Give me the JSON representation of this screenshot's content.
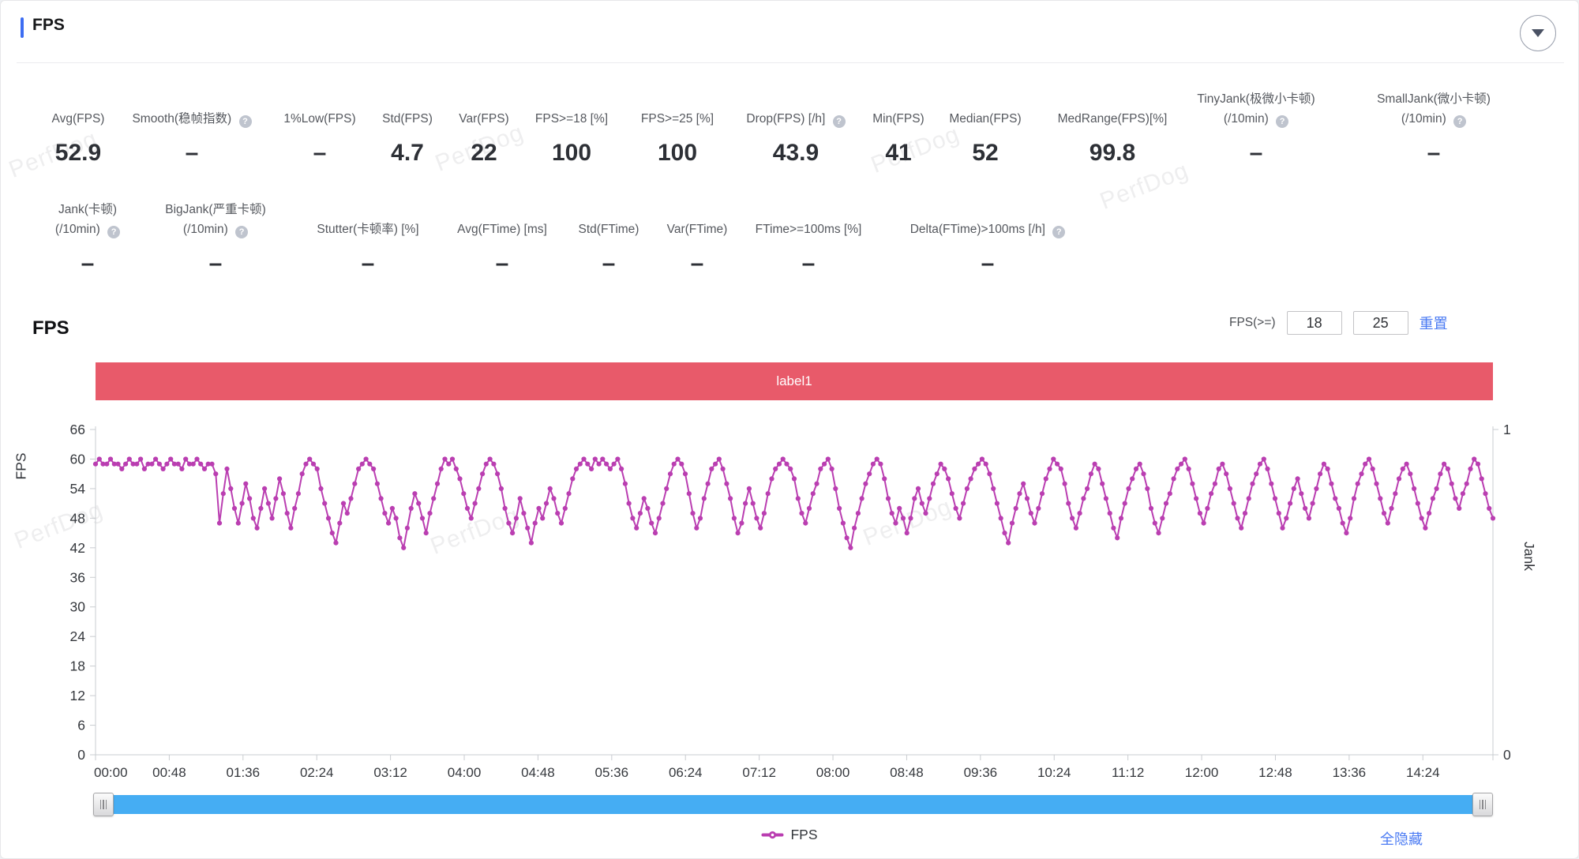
{
  "panel": {
    "title": "FPS"
  },
  "watermark": "PerfDog",
  "colors": {
    "accent_blue": "#3d6df2",
    "link_blue": "#4b7bf3",
    "banner_red": "#e85a6a",
    "series_magenta": "#ba3eb1",
    "scrollbar_blue": "#45adf3",
    "axis_line": "#c9ccd0",
    "axis_text": "#35383d"
  },
  "stats_row1": [
    {
      "line1": "Avg(FPS)",
      "line2": "",
      "help": false,
      "value": "52.9"
    },
    {
      "line1": "Smooth(稳帧指数)",
      "line2": "",
      "help": true,
      "value": "–"
    },
    {
      "line1": "1%Low(FPS)",
      "line2": "",
      "help": false,
      "value": "–"
    },
    {
      "line1": "Std(FPS)",
      "line2": "",
      "help": false,
      "value": "4.7"
    },
    {
      "line1": "Var(FPS)",
      "line2": "",
      "help": false,
      "value": "22"
    },
    {
      "line1": "FPS>=18 [%]",
      "line2": "",
      "help": false,
      "value": "100"
    },
    {
      "line1": "FPS>=25 [%]",
      "line2": "",
      "help": false,
      "value": "100"
    },
    {
      "line1": "Drop(FPS) [/h]",
      "line2": "",
      "help": true,
      "value": "43.9"
    },
    {
      "line1": "Min(FPS)",
      "line2": "",
      "help": false,
      "value": "41"
    },
    {
      "line1": "Median(FPS)",
      "line2": "",
      "help": false,
      "value": "52"
    },
    {
      "line1": "MedRange(FPS)[%]",
      "line2": "",
      "help": false,
      "value": "99.8"
    },
    {
      "line1": "TinyJank(极微小卡顿)",
      "line2": "(/10min)",
      "help": true,
      "value": "–"
    },
    {
      "line1": "SmallJank(微小卡顿)",
      "line2": "(/10min)",
      "help": true,
      "value": "–"
    }
  ],
  "stats_row2": [
    {
      "line1": "Jank(卡顿)",
      "line2": "(/10min)",
      "help": true,
      "value": "–"
    },
    {
      "line1": "BigJank(严重卡顿)",
      "line2": "(/10min)",
      "help": true,
      "value": "–"
    },
    {
      "line1": "Stutter(卡顿率) [%]",
      "line2": "",
      "help": false,
      "value": "–"
    },
    {
      "line1": "Avg(FTime) [ms]",
      "line2": "",
      "help": false,
      "value": "–"
    },
    {
      "line1": "Std(FTime)",
      "line2": "",
      "help": false,
      "value": "–"
    },
    {
      "line1": "Var(FTime)",
      "line2": "",
      "help": false,
      "value": "–"
    },
    {
      "line1": "FTime>=100ms [%]",
      "line2": "",
      "help": false,
      "value": "–"
    },
    {
      "line1": "Delta(FTime)>100ms [/h]",
      "line2": "",
      "help": true,
      "value": "–"
    }
  ],
  "chart": {
    "title": "FPS",
    "filter_label": "FPS(>=)",
    "filter_min": "18",
    "filter_max": "25",
    "reset_label": "重置",
    "banner_label": "label1",
    "legend_label": "FPS",
    "hide_all_label": "全隐藏",
    "y_axis_name": "FPS",
    "y2_axis_name": "Jank"
  },
  "chart_data": {
    "type": "line",
    "title": "FPS",
    "ylabel": "FPS",
    "y2label": "Jank",
    "ylim": [
      0,
      66
    ],
    "y2lim": [
      0,
      1
    ],
    "yticks": [
      0,
      6,
      12,
      18,
      24,
      30,
      36,
      42,
      48,
      54,
      60,
      66
    ],
    "y2ticks": [
      0,
      1
    ],
    "x_ticks": [
      "00:00",
      "00:48",
      "01:36",
      "02:24",
      "03:12",
      "04:00",
      "04:48",
      "05:36",
      "06:24",
      "07:12",
      "08:00",
      "08:48",
      "09:36",
      "10:24",
      "11:12",
      "12:00",
      "12:48",
      "13:36",
      "14:24"
    ],
    "grid": false,
    "legend_position": "bottom",
    "annotation_band": {
      "label": "label1",
      "color": "#e85a6a"
    },
    "series": [
      {
        "name": "FPS",
        "color": "#ba3eb1",
        "values": [
          59,
          60,
          59,
          59,
          60,
          59,
          59,
          58,
          59,
          60,
          59,
          59,
          60,
          58,
          59,
          59,
          60,
          59,
          58,
          59,
          60,
          59,
          59,
          58,
          60,
          59,
          59,
          60,
          59,
          58,
          59,
          59,
          57,
          47,
          53,
          58,
          54,
          50,
          47,
          51,
          55,
          52,
          48,
          46,
          50,
          54,
          51,
          48,
          52,
          56,
          53,
          49,
          46,
          50,
          53,
          57,
          59,
          60,
          59,
          58,
          54,
          51,
          48,
          45,
          43,
          47,
          51,
          49,
          52,
          55,
          58,
          59,
          60,
          59,
          58,
          55,
          52,
          49,
          47,
          50,
          48,
          44,
          42,
          46,
          50,
          53,
          51,
          48,
          45,
          49,
          52,
          55,
          58,
          60,
          59,
          60,
          58,
          56,
          53,
          50,
          48,
          51,
          54,
          57,
          59,
          60,
          59,
          57,
          54,
          50,
          47,
          45,
          48,
          52,
          49,
          46,
          43,
          47,
          50,
          48,
          51,
          54,
          52,
          49,
          47,
          50,
          53,
          56,
          58,
          59,
          60,
          59,
          58,
          60,
          59,
          60,
          59,
          58,
          59,
          60,
          58,
          55,
          51,
          48,
          46,
          49,
          52,
          50,
          47,
          45,
          48,
          51,
          54,
          57,
          59,
          60,
          59,
          57,
          53,
          49,
          46,
          48,
          52,
          55,
          58,
          59,
          60,
          58,
          55,
          52,
          48,
          45,
          47,
          51,
          54,
          51,
          48,
          46,
          49,
          53,
          56,
          58,
          59,
          60,
          59,
          58,
          56,
          52,
          49,
          47,
          50,
          53,
          55,
          58,
          59,
          60,
          58,
          54,
          50,
          47,
          44,
          42,
          46,
          49,
          52,
          55,
          57,
          59,
          60,
          59,
          56,
          52,
          49,
          47,
          50,
          48,
          45,
          48,
          52,
          54,
          51,
          49,
          52,
          55,
          57,
          59,
          58,
          56,
          53,
          50,
          48,
          51,
          54,
          56,
          58,
          59,
          60,
          59,
          57,
          54,
          51,
          48,
          45,
          43,
          47,
          50,
          53,
          55,
          52,
          49,
          47,
          50,
          53,
          56,
          58,
          60,
          59,
          58,
          55,
          51,
          48,
          46,
          49,
          52,
          54,
          57,
          59,
          58,
          55,
          52,
          49,
          46,
          44,
          48,
          51,
          54,
          56,
          58,
          59,
          57,
          54,
          50,
          47,
          45,
          48,
          51,
          53,
          56,
          58,
          59,
          60,
          58,
          55,
          52,
          49,
          47,
          50,
          53,
          55,
          58,
          59,
          57,
          54,
          51,
          48,
          46,
          49,
          52,
          55,
          57,
          59,
          60,
          58,
          55,
          52,
          49,
          46,
          48,
          51,
          54,
          56,
          53,
          50,
          48,
          51,
          54,
          57,
          59,
          58,
          55,
          52,
          50,
          47,
          45,
          48,
          52,
          55,
          57,
          59,
          60,
          58,
          55,
          52,
          49,
          47,
          50,
          53,
          56,
          58,
          59,
          57,
          54,
          51,
          48,
          46,
          49,
          52,
          54,
          57,
          59,
          58,
          55,
          52,
          50,
          53,
          55,
          58,
          60,
          59,
          56,
          53,
          50,
          48
        ]
      }
    ]
  }
}
